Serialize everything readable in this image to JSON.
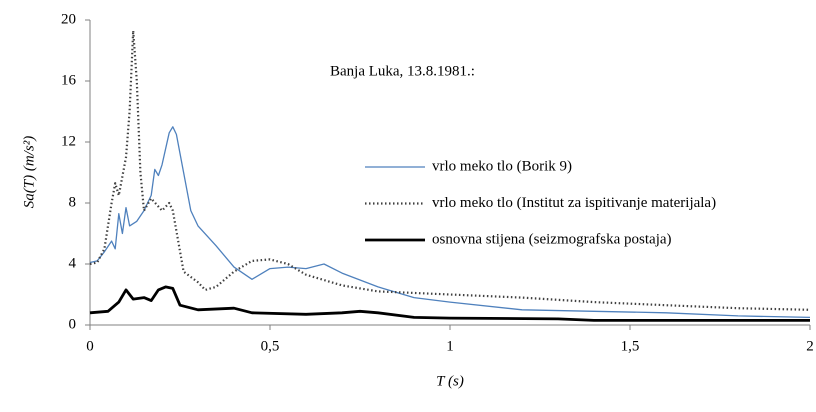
{
  "chart_data": {
    "type": "line",
    "annotation": "Banja Luka, 13.8.1981.:",
    "x_label": "T (s)",
    "y_label": "Sa(T) (m/s²)",
    "xlim": [
      0,
      2
    ],
    "ylim": [
      0,
      20
    ],
    "xticks": [
      0,
      {
        "value": 0.5,
        "label": "0,5"
      },
      1,
      {
        "value": 1.5,
        "label": "1,5"
      },
      2
    ],
    "yticks": [
      0,
      4,
      8,
      12,
      16,
      20
    ],
    "grid": false,
    "series": [
      {
        "name": "vrlo meko tlo (Borik 9)",
        "color": "#4f81bd",
        "line_style": "solid",
        "x": [
          0,
          0.02,
          0.04,
          0.06,
          0.07,
          0.08,
          0.09,
          0.1,
          0.11,
          0.13,
          0.15,
          0.17,
          0.18,
          0.19,
          0.2,
          0.22,
          0.23,
          0.24,
          0.26,
          0.28,
          0.3,
          0.35,
          0.4,
          0.45,
          0.5,
          0.55,
          0.6,
          0.65,
          0.7,
          0.8,
          0.9,
          1.0,
          1.2,
          1.4,
          1.6,
          1.8,
          2.0
        ],
        "values": [
          4.1,
          4.2,
          4.8,
          5.5,
          5.0,
          7.3,
          6.0,
          7.7,
          6.5,
          6.8,
          7.5,
          8.5,
          10.2,
          9.8,
          10.5,
          12.6,
          13.0,
          12.5,
          10,
          7.5,
          6.5,
          5.2,
          3.8,
          3.0,
          3.7,
          3.8,
          3.7,
          4.0,
          3.4,
          2.5,
          1.8,
          1.5,
          1.0,
          0.9,
          0.8,
          0.6,
          0.5
        ]
      },
      {
        "name": "vrlo meko tlo (Institut za ispitivanje materijala)",
        "color": "#404040",
        "line_style": "dotted",
        "x": [
          0,
          0.02,
          0.04,
          0.06,
          0.07,
          0.08,
          0.1,
          0.11,
          0.12,
          0.13,
          0.14,
          0.15,
          0.17,
          0.2,
          0.22,
          0.23,
          0.26,
          0.3,
          0.32,
          0.35,
          0.4,
          0.45,
          0.5,
          0.55,
          0.6,
          0.7,
          0.8,
          1.0,
          1.2,
          1.4,
          1.6,
          1.8,
          2.0
        ],
        "values": [
          4.0,
          4.1,
          5.0,
          8.0,
          9.3,
          8.5,
          11,
          14,
          19.3,
          16,
          10,
          7.5,
          8.3,
          7.5,
          8.0,
          7.5,
          3.5,
          2.8,
          2.3,
          2.5,
          3.5,
          4.2,
          4.3,
          4.0,
          3.3,
          2.6,
          2.2,
          2.0,
          1.8,
          1.5,
          1.3,
          1.1,
          1.0
        ]
      },
      {
        "name": "osnovna stijena (seizmografska postaja)",
        "color": "#000000",
        "line_style": "bold",
        "x": [
          0,
          0.05,
          0.08,
          0.1,
          0.12,
          0.15,
          0.17,
          0.19,
          0.21,
          0.23,
          0.25,
          0.3,
          0.4,
          0.45,
          0.6,
          0.7,
          0.75,
          0.8,
          0.9,
          1.0,
          1.3,
          1.4,
          2.0
        ],
        "values": [
          0.8,
          0.9,
          1.5,
          2.3,
          1.7,
          1.8,
          1.6,
          2.3,
          2.5,
          2.4,
          1.3,
          1.0,
          1.1,
          0.8,
          0.7,
          0.8,
          0.9,
          0.8,
          0.5,
          0.45,
          0.4,
          0.3,
          0.3
        ]
      }
    ]
  }
}
